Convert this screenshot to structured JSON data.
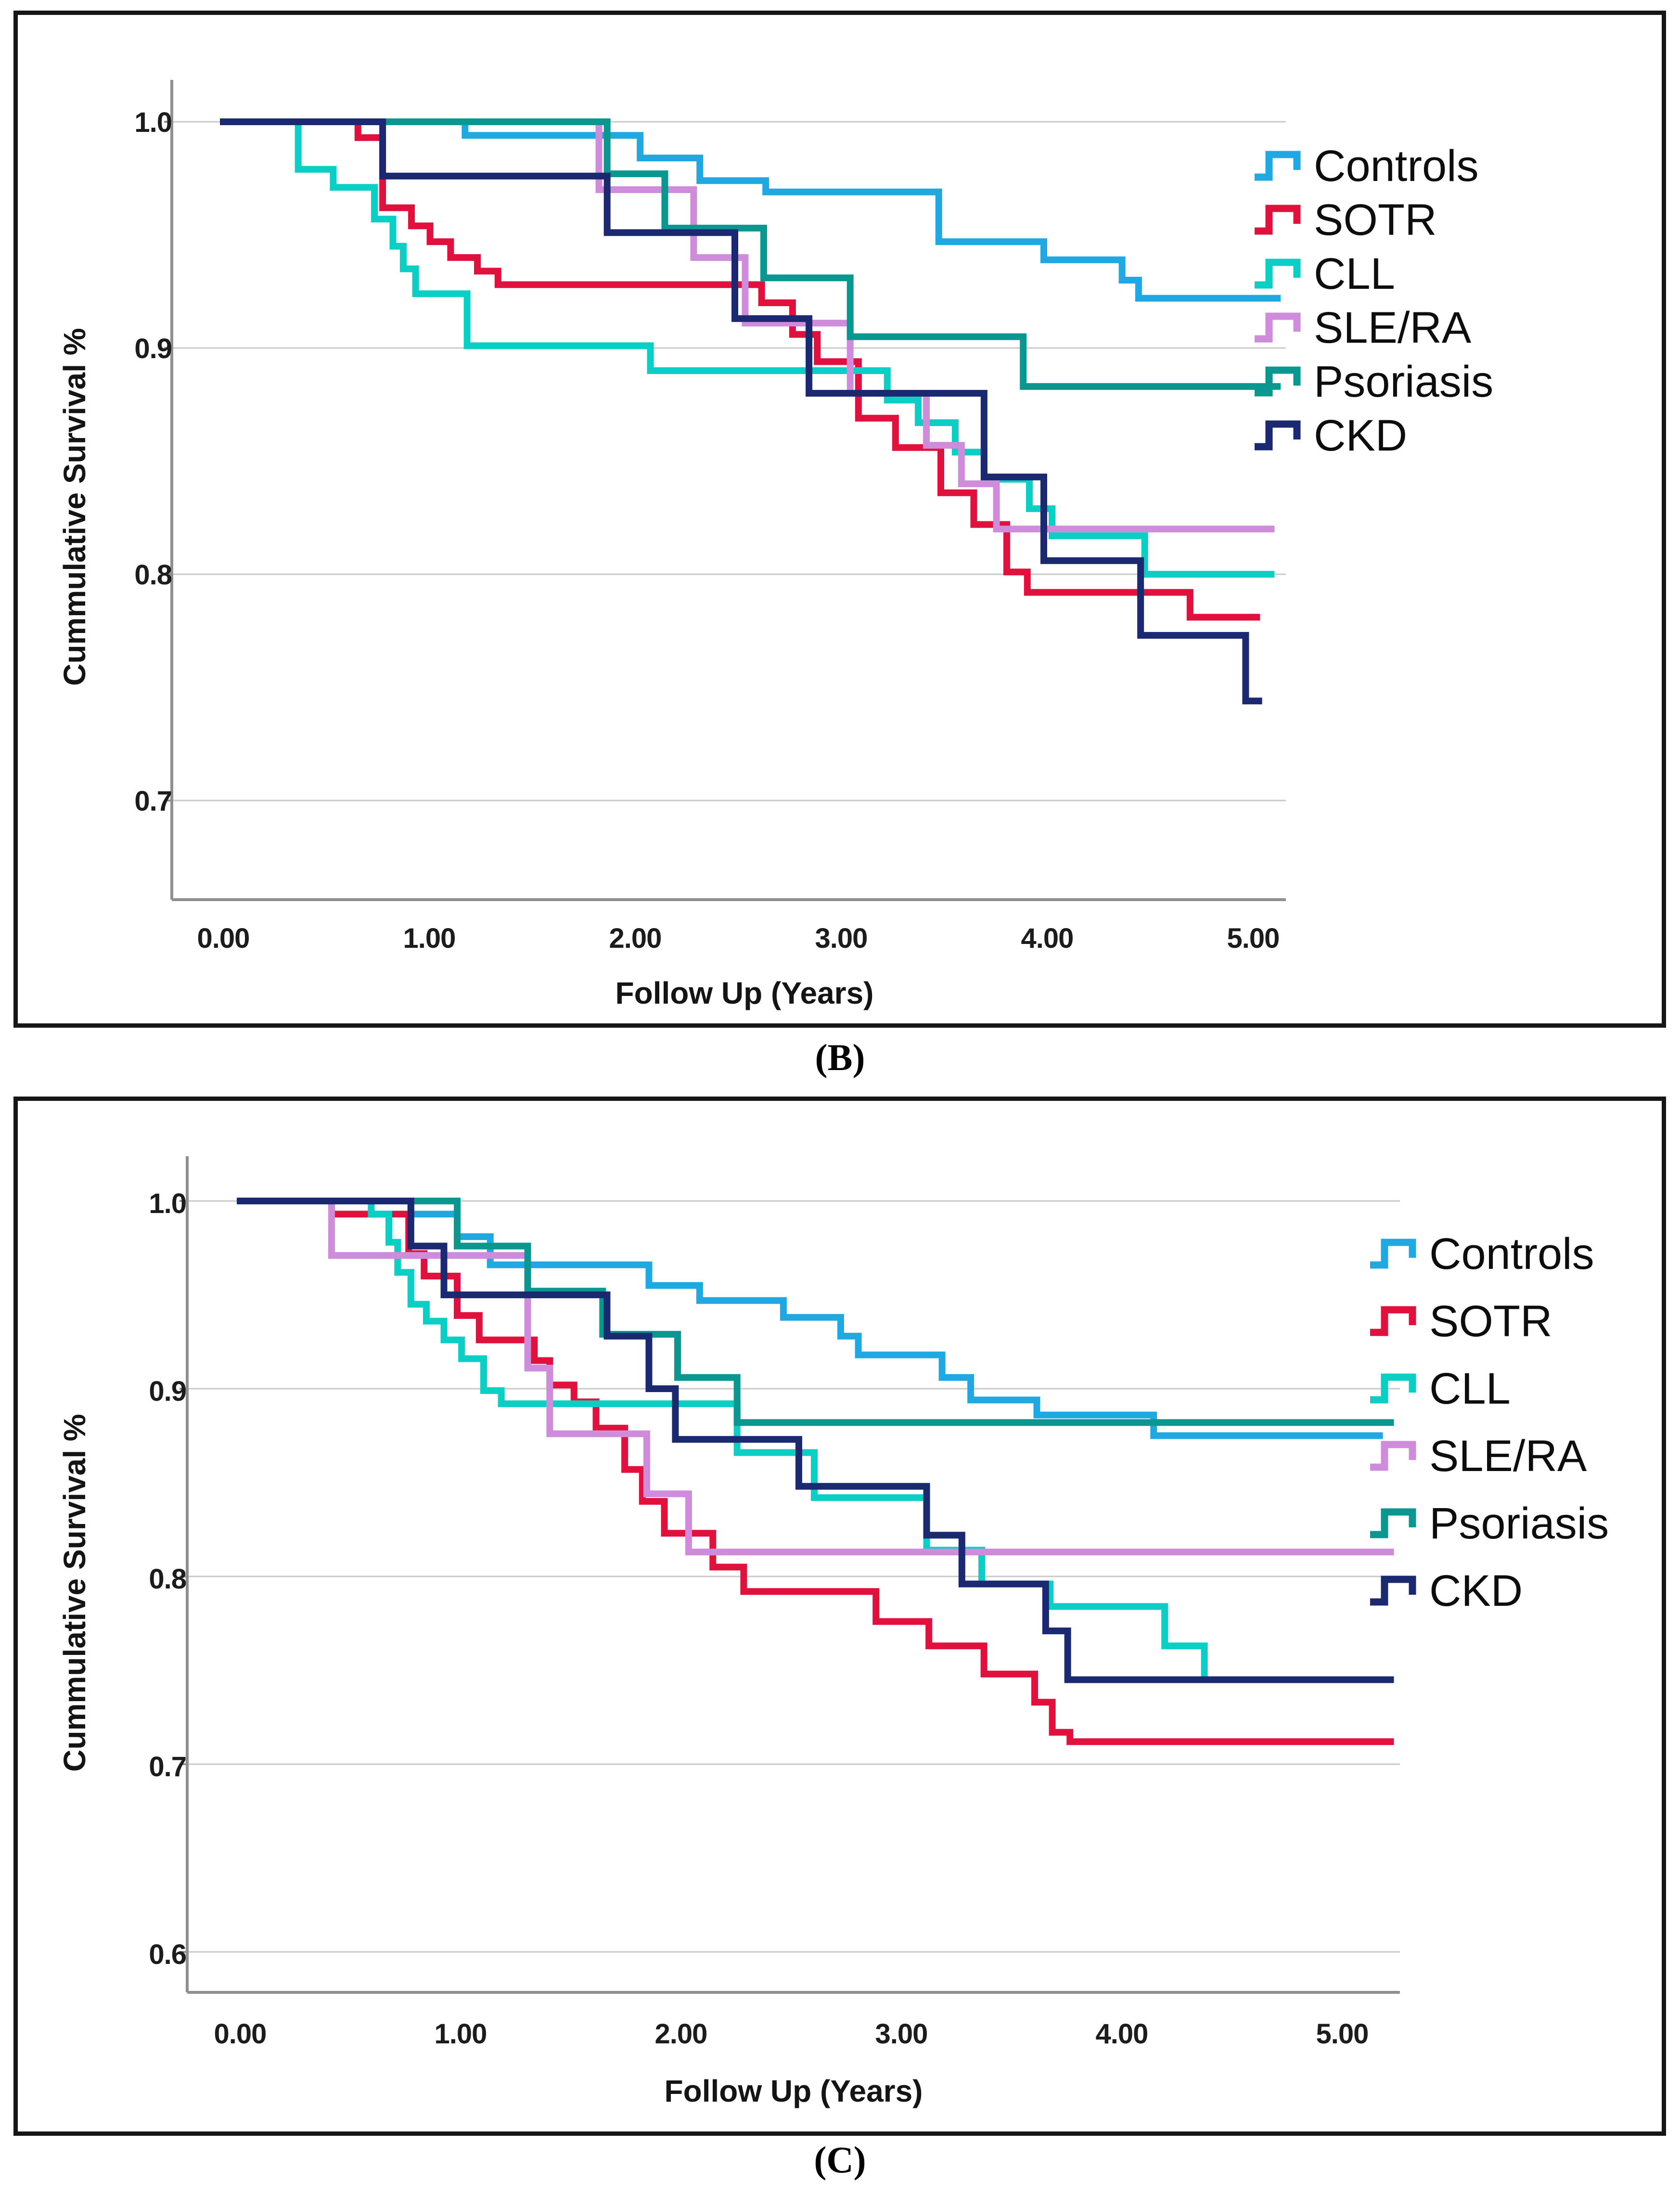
{
  "figure": {
    "background": "#ffffff",
    "panels": [
      {
        "id": "B",
        "caption": "(B)"
      },
      {
        "id": "C",
        "caption": "(C)"
      }
    ]
  },
  "chart_data": [
    {
      "type": "line",
      "subtype": "kaplan-meier-step",
      "panel": "B",
      "title": "",
      "xlabel": "Follow Up (Years)",
      "ylabel": "Cummulative Survival %",
      "xticks": [
        0,
        1,
        2,
        3,
        4,
        5
      ],
      "xtick_labels": [
        "0.00",
        "1.00",
        "2.00",
        "3.00",
        "4.00",
        "5.00"
      ],
      "yticks": [
        1.0,
        0.9,
        0.8,
        0.7
      ],
      "ytick_labels": [
        "1.0",
        "0.9",
        "0.8",
        "0.7"
      ],
      "xlim": [
        0,
        5.2
      ],
      "ylim": [
        0.655,
        1.02
      ],
      "grid": "horizontal",
      "legend_position": "right",
      "grid_color": "#c9c9c9",
      "axis_color": "#8f8f8f",
      "series": [
        {
          "name": "Controls",
          "color": "#1FA8E2",
          "points": [
            [
              0,
              1
            ],
            [
              1.19,
              0.994
            ],
            [
              2.04,
              0.984
            ],
            [
              2.33,
              0.974
            ],
            [
              2.65,
              0.969
            ],
            [
              3.49,
              0.947
            ],
            [
              4.0,
              0.939
            ],
            [
              4.38,
              0.93
            ],
            [
              4.46,
              0.922
            ],
            [
              5.15,
              0.922
            ]
          ]
        },
        {
          "name": "SOTR",
          "color": "#E0113C",
          "points": [
            [
              0,
              1
            ],
            [
              0.67,
              0.993
            ],
            [
              0.79,
              0.962
            ],
            [
              0.93,
              0.954
            ],
            [
              1.02,
              0.947
            ],
            [
              1.12,
              0.94
            ],
            [
              1.25,
              0.934
            ],
            [
              1.35,
              0.928
            ],
            [
              2.63,
              0.92
            ],
            [
              2.78,
              0.906
            ],
            [
              2.9,
              0.894
            ],
            [
              3.1,
              0.869
            ],
            [
              3.28,
              0.856
            ],
            [
              3.5,
              0.836
            ],
            [
              3.66,
              0.822
            ],
            [
              3.82,
              0.801
            ],
            [
              3.92,
              0.792
            ],
            [
              4.71,
              0.781
            ],
            [
              5.05,
              0.781
            ]
          ]
        },
        {
          "name": "CLL",
          "color": "#0BCEC5",
          "points": [
            [
              0,
              1
            ],
            [
              0.38,
              0.979
            ],
            [
              0.55,
              0.971
            ],
            [
              0.75,
              0.957
            ],
            [
              0.84,
              0.945
            ],
            [
              0.89,
              0.935
            ],
            [
              0.95,
              0.924
            ],
            [
              1.2,
              0.901
            ],
            [
              2.09,
              0.89
            ],
            [
              3.24,
              0.877
            ],
            [
              3.39,
              0.867
            ],
            [
              3.57,
              0.854
            ],
            [
              3.71,
              0.842
            ],
            [
              3.93,
              0.829
            ],
            [
              4.04,
              0.817
            ],
            [
              4.49,
              0.8
            ],
            [
              5.12,
              0.8
            ]
          ]
        },
        {
          "name": "SLE/RA",
          "color": "#CF8CDB",
          "points": [
            [
              0,
              1
            ],
            [
              1.84,
              0.97
            ],
            [
              2.3,
              0.94
            ],
            [
              2.55,
              0.911
            ],
            [
              3.06,
              0.88
            ],
            [
              3.43,
              0.857
            ],
            [
              3.6,
              0.84
            ],
            [
              3.77,
              0.82
            ],
            [
              5.12,
              0.82
            ]
          ]
        },
        {
          "name": "Psoriasis",
          "color": "#0A9790",
          "points": [
            [
              0,
              1
            ],
            [
              1.88,
              0.977
            ],
            [
              2.16,
              0.953
            ],
            [
              2.64,
              0.931
            ],
            [
              3.06,
              0.905
            ],
            [
              3.9,
              0.883
            ],
            [
              5.15,
              0.883
            ]
          ]
        },
        {
          "name": "CKD",
          "color": "#1B2971",
          "points": [
            [
              0,
              1
            ],
            [
              0.79,
              0.976
            ],
            [
              1.88,
              0.951
            ],
            [
              2.5,
              0.913
            ],
            [
              2.86,
              0.88
            ],
            [
              3.71,
              0.843
            ],
            [
              4.0,
              0.806
            ],
            [
              4.47,
              0.773
            ],
            [
              4.98,
              0.744
            ],
            [
              5.06,
              0.744
            ]
          ]
        }
      ]
    },
    {
      "type": "line",
      "subtype": "kaplan-meier-step",
      "panel": "C",
      "title": "",
      "xlabel": "Follow Up (Years)",
      "ylabel": "Cummulative Survival %",
      "xticks": [
        0,
        1,
        2,
        3,
        4,
        5
      ],
      "xtick_labels": [
        "0.00",
        "1.00",
        "2.00",
        "3.00",
        "4.00",
        "5.00"
      ],
      "yticks": [
        1.0,
        0.9,
        0.8,
        0.7,
        0.6
      ],
      "ytick_labels": [
        "1.0",
        "0.9",
        "0.8",
        "0.7",
        "0.6"
      ],
      "xlim": [
        0,
        5.28
      ],
      "ylim": [
        0.578,
        1.02
      ],
      "grid": "horizontal",
      "legend_position": "right",
      "grid_color": "#c9c9c9",
      "axis_color": "#8f8f8f",
      "series": [
        {
          "name": "Controls",
          "color": "#1FA8E2",
          "points": [
            [
              0,
              1
            ],
            [
              0.79,
              0.993
            ],
            [
              1.0,
              0.981
            ],
            [
              1.15,
              0.966
            ],
            [
              1.87,
              0.955
            ],
            [
              2.1,
              0.947
            ],
            [
              2.48,
              0.938
            ],
            [
              2.74,
              0.928
            ],
            [
              2.82,
              0.918
            ],
            [
              3.2,
              0.906
            ],
            [
              3.33,
              0.894
            ],
            [
              3.63,
              0.886
            ],
            [
              4.16,
              0.875
            ],
            [
              5.2,
              0.875
            ]
          ]
        },
        {
          "name": "SOTR",
          "color": "#E0113C",
          "points": [
            [
              0,
              1
            ],
            [
              0.43,
              0.993
            ],
            [
              0.78,
              0.972
            ],
            [
              0.85,
              0.96
            ],
            [
              1.0,
              0.939
            ],
            [
              1.1,
              0.926
            ],
            [
              1.35,
              0.915
            ],
            [
              1.42,
              0.902
            ],
            [
              1.53,
              0.893
            ],
            [
              1.63,
              0.879
            ],
            [
              1.76,
              0.857
            ],
            [
              1.84,
              0.84
            ],
            [
              1.94,
              0.823
            ],
            [
              2.16,
              0.805
            ],
            [
              2.3,
              0.792
            ],
            [
              2.9,
              0.776
            ],
            [
              3.14,
              0.763
            ],
            [
              3.39,
              0.748
            ],
            [
              3.62,
              0.733
            ],
            [
              3.7,
              0.717
            ],
            [
              3.78,
              0.712
            ],
            [
              5.25,
              0.712
            ]
          ]
        },
        {
          "name": "CLL",
          "color": "#0BCEC5",
          "points": [
            [
              0,
              1
            ],
            [
              0.61,
              0.993
            ],
            [
              0.69,
              0.978
            ],
            [
              0.73,
              0.962
            ],
            [
              0.79,
              0.945
            ],
            [
              0.86,
              0.936
            ],
            [
              0.94,
              0.926
            ],
            [
              1.02,
              0.916
            ],
            [
              1.12,
              0.899
            ],
            [
              1.2,
              0.892
            ],
            [
              2.27,
              0.866
            ],
            [
              2.62,
              0.842
            ],
            [
              3.13,
              0.814
            ],
            [
              3.38,
              0.796
            ],
            [
              3.69,
              0.784
            ],
            [
              4.21,
              0.763
            ],
            [
              4.39,
              0.745
            ],
            [
              5.2,
              0.745
            ]
          ]
        },
        {
          "name": "SLE/RA",
          "color": "#CF8CDB",
          "points": [
            [
              0,
              1
            ],
            [
              0.43,
              0.971
            ],
            [
              1.32,
              0.911
            ],
            [
              1.42,
              0.876
            ],
            [
              1.86,
              0.844
            ],
            [
              2.05,
              0.813
            ],
            [
              5.25,
              0.813
            ]
          ]
        },
        {
          "name": "Psoriasis",
          "color": "#0A9790",
          "points": [
            [
              0,
              1
            ],
            [
              1.0,
              0.976
            ],
            [
              1.32,
              0.952
            ],
            [
              1.66,
              0.929
            ],
            [
              2.0,
              0.906
            ],
            [
              2.27,
              0.882
            ],
            [
              5.25,
              0.882
            ]
          ]
        },
        {
          "name": "CKD",
          "color": "#1B2971",
          "points": [
            [
              0,
              1
            ],
            [
              0.79,
              0.976
            ],
            [
              0.94,
              0.95
            ],
            [
              1.68,
              0.928
            ],
            [
              1.87,
              0.9
            ],
            [
              1.99,
              0.873
            ],
            [
              2.55,
              0.848
            ],
            [
              3.13,
              0.822
            ],
            [
              3.29,
              0.796
            ],
            [
              3.67,
              0.771
            ],
            [
              3.77,
              0.745
            ],
            [
              5.25,
              0.745
            ]
          ]
        }
      ]
    }
  ]
}
